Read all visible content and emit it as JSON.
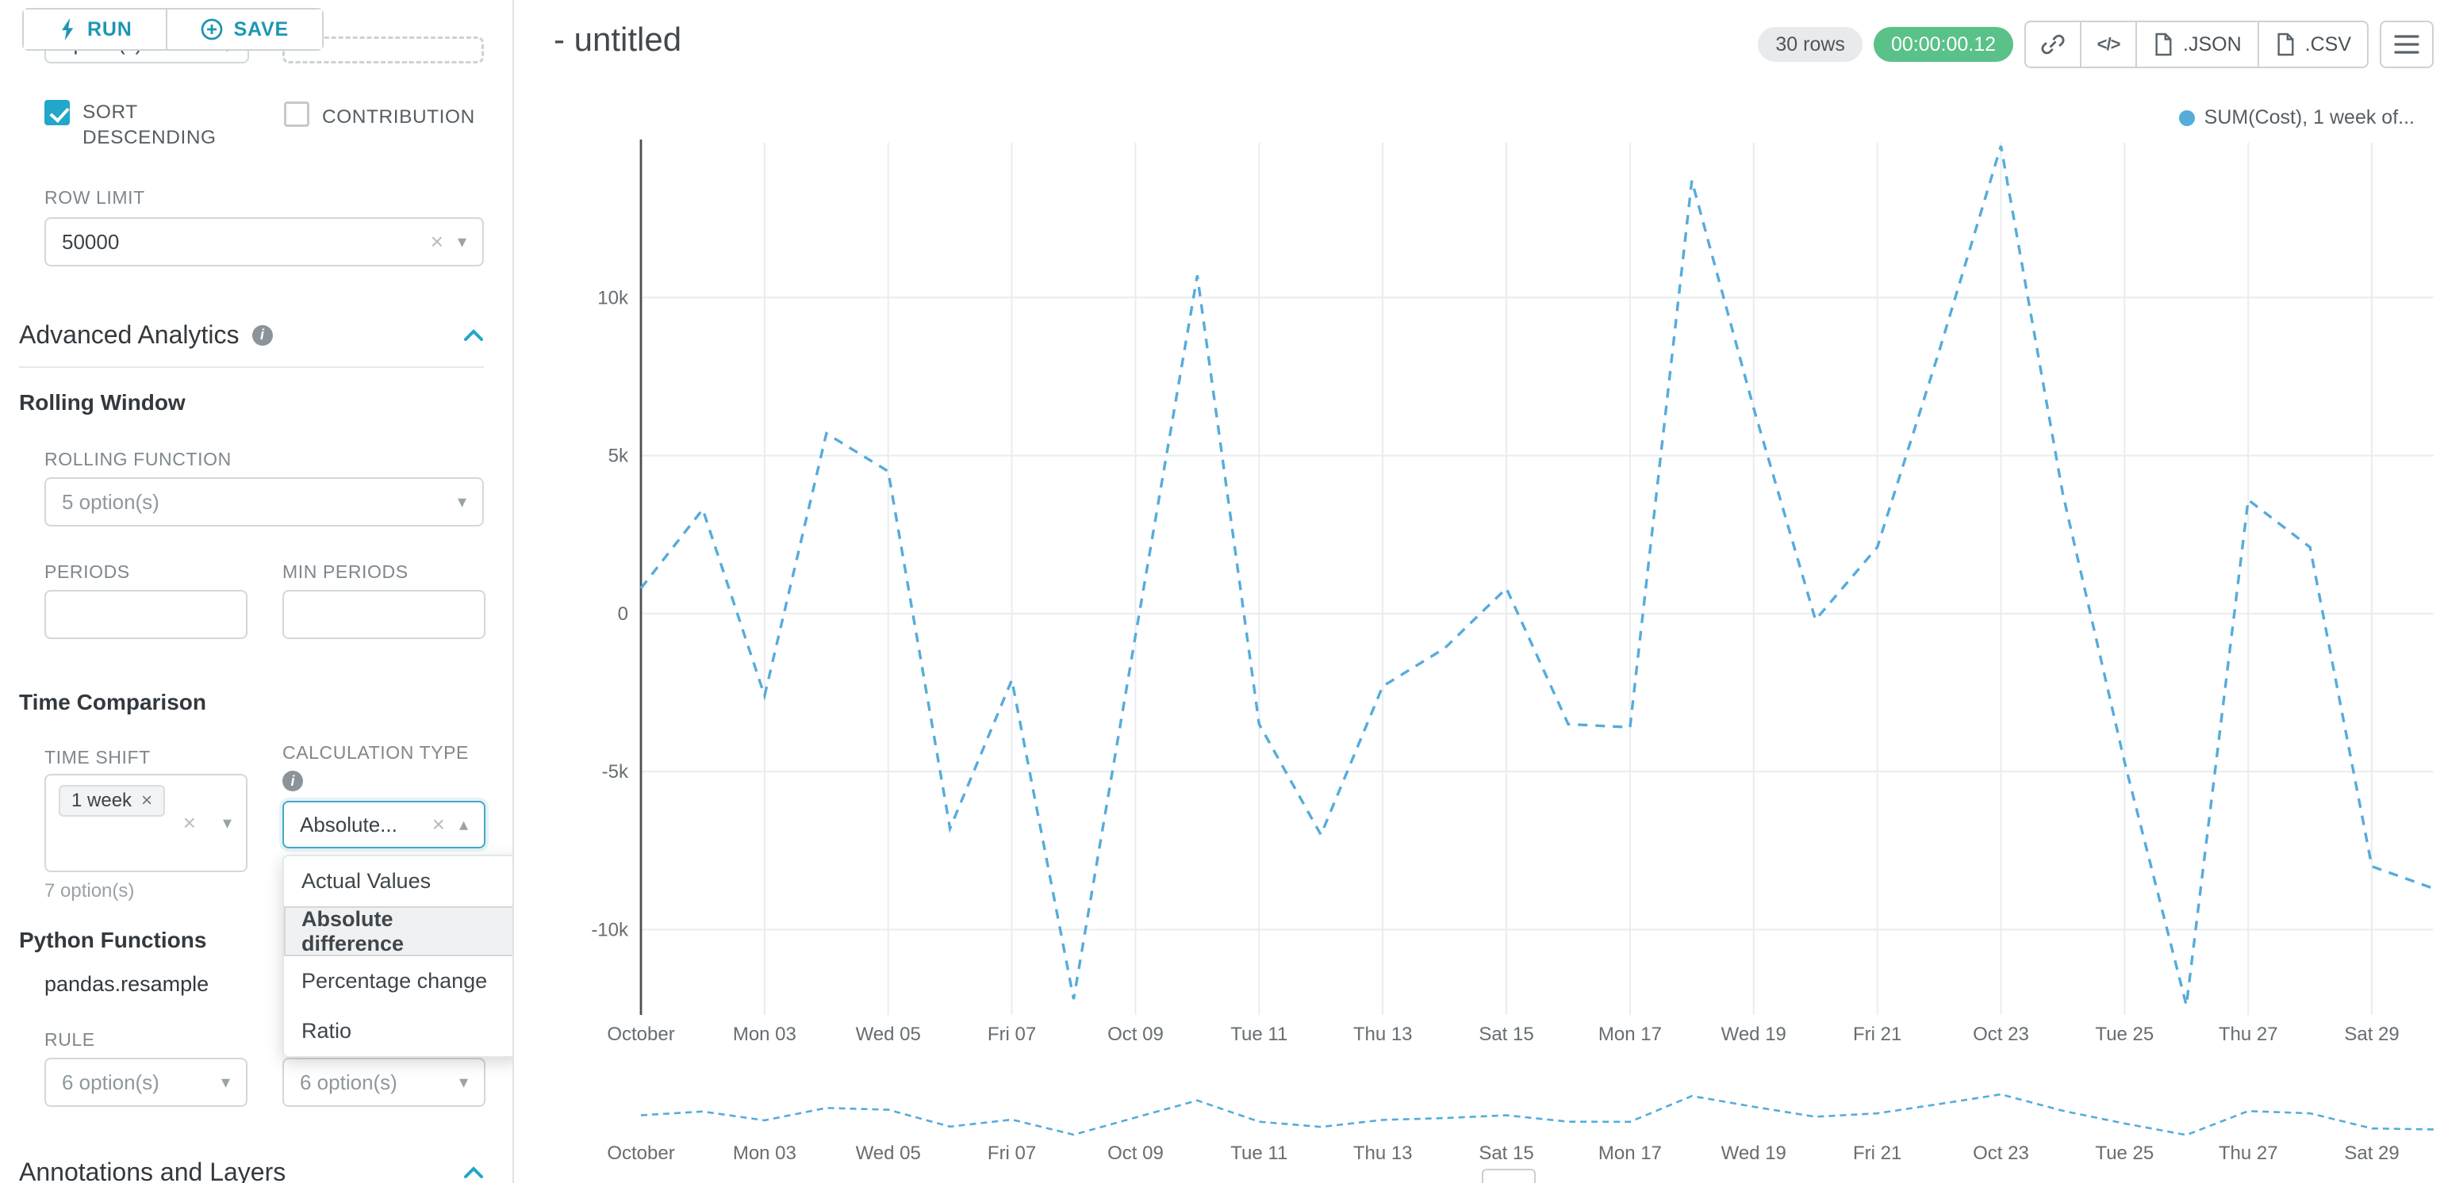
{
  "colors": {
    "accent": "#20a7c9",
    "button_text": "#1e96b5",
    "success_badge": "#5ac189",
    "line": "#55acdb",
    "grid": "#ebecee",
    "axis": "#4a5055"
  },
  "icons": {
    "caret_down": "▾",
    "caret_up": "▴",
    "clear": "×",
    "info": "i",
    "code": "</>"
  },
  "toolbar": {
    "run_label": "RUN",
    "save_label": "SAVE"
  },
  "sidebar": {
    "scrolled_select_text": "option(s)",
    "sort_descending_label": "SORT DESCENDING",
    "sort_descending_checked": true,
    "contribution_label": "CONTRIBUTION",
    "contribution_checked": false,
    "row_limit_label": "ROW LIMIT",
    "row_limit_value": "50000",
    "advanced_analytics_title": "Advanced Analytics",
    "rolling_window_title": "Rolling Window",
    "rolling_function_label": "ROLLING FUNCTION",
    "rolling_function_value": "5 option(s)",
    "periods_label": "PERIODS",
    "min_periods_label": "MIN PERIODS",
    "time_comparison_title": "Time Comparison",
    "time_shift_label": "TIME SHIFT",
    "time_shift_tag": "1 week",
    "time_shift_helper": "7 option(s)",
    "calculation_type_label": "CALCULATION TYPE",
    "calculation_type_value": "Absolute...",
    "calculation_options": [
      "Actual Values",
      "Absolute difference",
      "Percentage change",
      "Ratio"
    ],
    "calculation_selected": "Absolute difference",
    "python_functions_title": "Python Functions",
    "python_functions_tab": "pandas.resample",
    "rule_label": "RULE",
    "rule_value": "6 option(s)",
    "rule_value_2": "6 option(s)",
    "annotations_title": "Annotations and Layers"
  },
  "header": {
    "chart_title": "- untitled",
    "rows_badge": "30 rows",
    "timer_badge": "00:00:00.12",
    "json_label": ".JSON",
    "csv_label": ".CSV"
  },
  "chart_data": {
    "type": "line",
    "legend": [
      "SUM(Cost), 1 week of..."
    ],
    "series_color": "#55acdb",
    "line_style": "dashed",
    "grid": true,
    "has_mini_preview": true,
    "x": [
      "Oct 01",
      "Oct 02",
      "Oct 03",
      "Oct 04",
      "Oct 05",
      "Oct 06",
      "Oct 07",
      "Oct 08",
      "Oct 09",
      "Oct 10",
      "Oct 11",
      "Oct 12",
      "Oct 13",
      "Oct 14",
      "Oct 15",
      "Oct 16",
      "Oct 17",
      "Oct 18",
      "Oct 19",
      "Oct 20",
      "Oct 21",
      "Oct 22",
      "Oct 23",
      "Oct 24",
      "Oct 25",
      "Oct 26",
      "Oct 27",
      "Oct 28",
      "Oct 29",
      "Oct 30"
    ],
    "values": [
      800,
      3300,
      -2600,
      5700,
      4500,
      -6800,
      -2100,
      -12200,
      -700,
      10700,
      -3500,
      -7000,
      -2300,
      -1100,
      800,
      -3500,
      -3600,
      13700,
      6500,
      -200,
      2100,
      8300,
      14800,
      3800,
      -4700,
      -12400,
      3600,
      2100,
      -8000,
      -8700
    ],
    "x_tick_labels": [
      "October",
      "Mon 03",
      "Wed 05",
      "Fri 07",
      "Oct 09",
      "Tue 11",
      "Thu 13",
      "Sat 15",
      "Mon 17",
      "Wed 19",
      "Fri 21",
      "Oct 23",
      "Tue 25",
      "Thu 27",
      "Sat 29"
    ],
    "y_ticks": [
      10000,
      5000,
      0,
      -5000,
      -10000
    ],
    "y_tick_labels": [
      "10k",
      "5k",
      "0",
      "-5k",
      "-10k"
    ],
    "ylim": [
      -12700,
      14900
    ]
  }
}
